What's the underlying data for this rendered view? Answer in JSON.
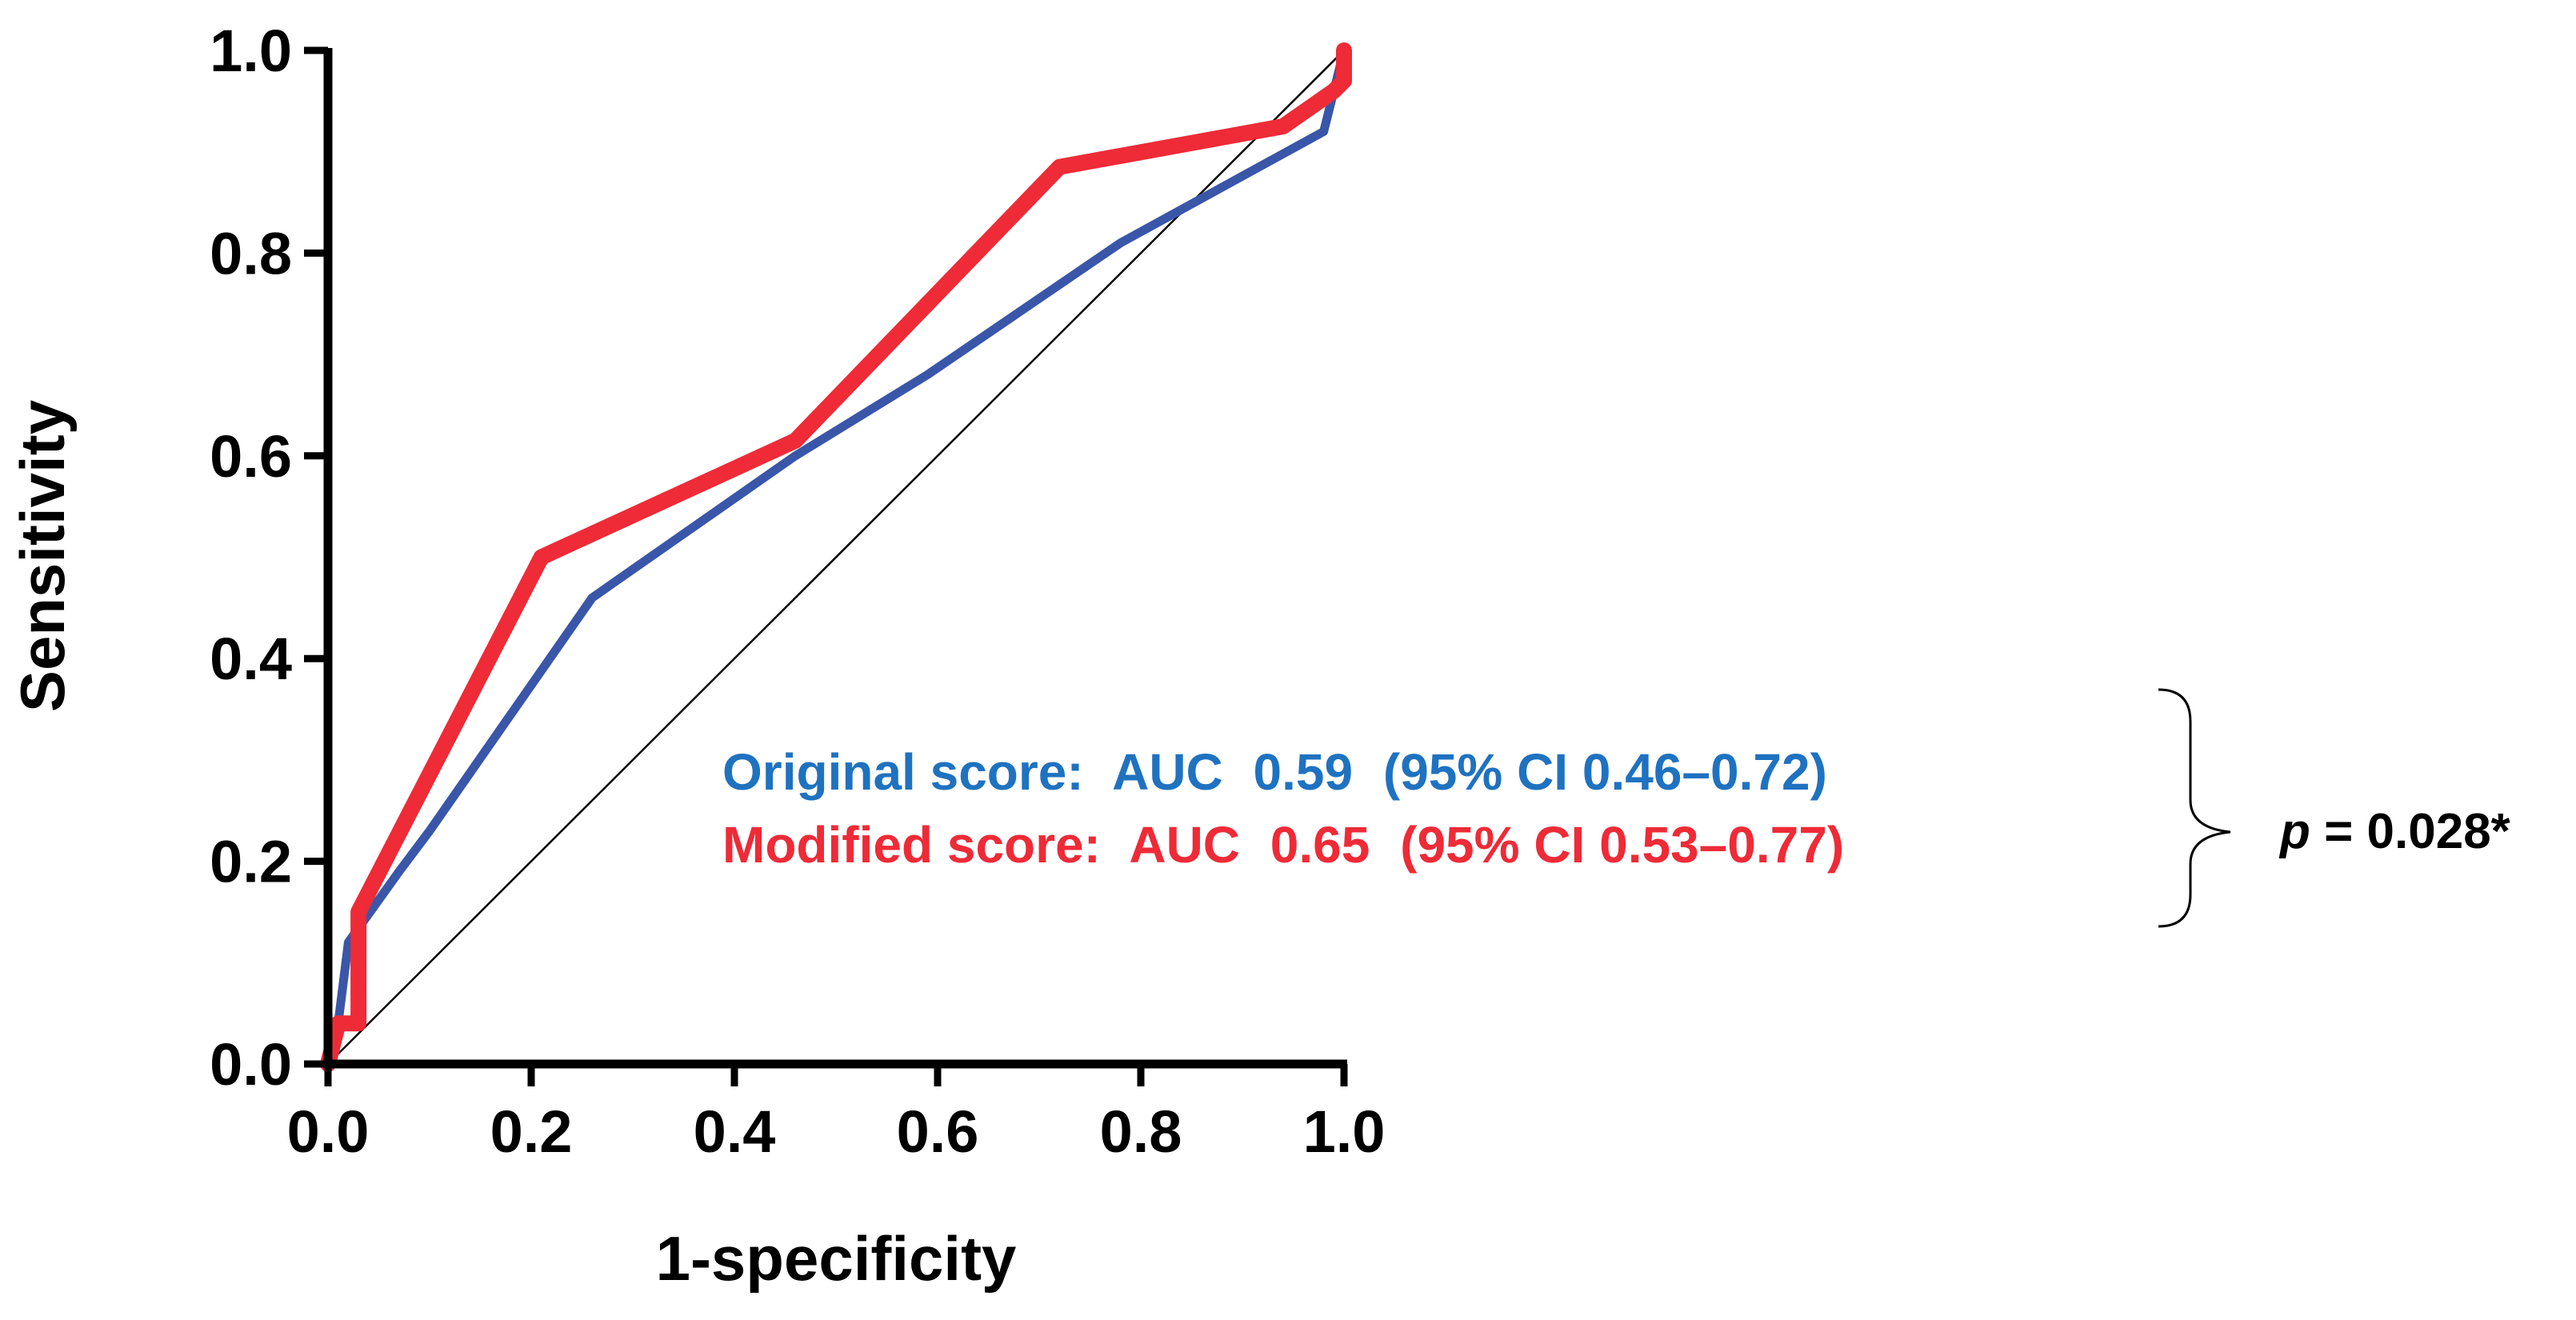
{
  "chart_data": {
    "type": "line",
    "xlabel": "1-specificity",
    "ylabel": "Sensitivity",
    "xlim": [
      0,
      1
    ],
    "ylim": [
      0,
      1
    ],
    "x_ticks": [
      "0.0",
      "0.2",
      "0.4",
      "0.6",
      "0.8",
      "1.0"
    ],
    "y_ticks": [
      "0.0",
      "0.2",
      "0.4",
      "0.6",
      "0.8",
      "1.0"
    ],
    "grid": false,
    "series": [
      {
        "name": "Original score",
        "color": "#3a56a8",
        "x": [
          0.0,
          0.01,
          0.02,
          0.07,
          0.1,
          0.26,
          0.46,
          0.59,
          0.78,
          0.98,
          0.99,
          1.0
        ],
        "y": [
          0.0,
          0.04,
          0.12,
          0.19,
          0.23,
          0.46,
          0.6,
          0.68,
          0.81,
          0.92,
          0.96,
          1.0
        ]
      },
      {
        "name": "Modified score",
        "color": "#ee2b37",
        "x": [
          0.0,
          0.01,
          0.03,
          0.03,
          0.21,
          0.46,
          0.72,
          0.94,
          0.99,
          1.0,
          1.0
        ],
        "y": [
          0.0,
          0.04,
          0.04,
          0.15,
          0.5,
          0.615,
          0.885,
          0.925,
          0.96,
          0.97,
          1.0
        ]
      },
      {
        "name": "Reference",
        "color": "#000000",
        "x": [
          0,
          1
        ],
        "y": [
          0,
          1
        ]
      }
    ],
    "annotations": {
      "original": {
        "label": "Original score:",
        "auc": "AUC",
        "value": "0.59",
        "ci": "(95%  CI 0.46–0.72)",
        "color": "#1f72c0"
      },
      "modified": {
        "label": "Modified score:",
        "auc": "AUC",
        "value": "0.65",
        "ci": "(95%  CI 0.53–0.77)",
        "color": "#ee2b37"
      },
      "pvalue": {
        "symbol": "p",
        "text": " = 0.028*"
      }
    }
  }
}
